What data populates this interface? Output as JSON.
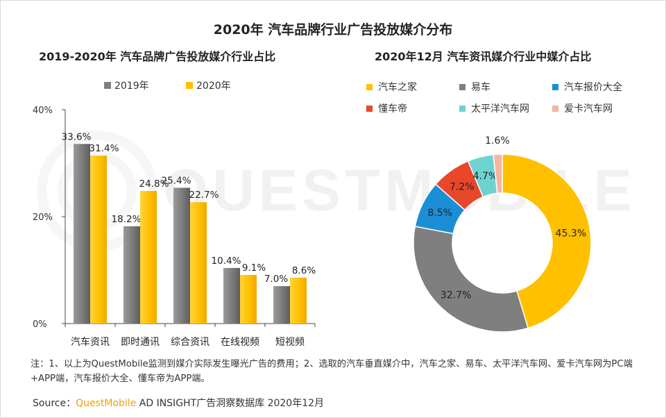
{
  "header": {
    "main_title": "2020年 汽车品牌行业广告投放媒介分布",
    "left_title": "2019-2020年 汽车品牌广告投放媒介行业占比",
    "right_title": "2020年12月 汽车资讯媒介行业中媒介占比"
  },
  "watermark": {
    "text": "QUESTMOBILE"
  },
  "chart_data": [
    {
      "type": "bar",
      "title": "2019-2020年 汽车品牌广告投放媒介行业占比",
      "categories": [
        "汽车资讯",
        "即时通讯",
        "综合资讯",
        "在线视频",
        "短视频"
      ],
      "series": [
        {
          "name": "2019年",
          "color": "#7f7f7f",
          "values": [
            33.6,
            18.2,
            25.4,
            10.4,
            7.0
          ],
          "labels": [
            "33.6%",
            "18.2%",
            "25.4%",
            "10.4%",
            "7.0%"
          ]
        },
        {
          "name": "2020年",
          "color": "#ffc000",
          "values": [
            31.4,
            24.8,
            22.7,
            9.1,
            8.6
          ],
          "labels": [
            "31.4%",
            "24.8%",
            "22.7%",
            "9.1%",
            "8.6%"
          ]
        }
      ],
      "ylim": [
        0,
        40
      ],
      "yticks": [
        0,
        20,
        40
      ],
      "ytick_labels": [
        "0%",
        "20%",
        "40%"
      ],
      "legend_position": "top"
    },
    {
      "type": "pie",
      "variant": "donut",
      "title": "2020年12月 汽车资讯媒介行业中媒介占比",
      "slices": [
        {
          "name": "汽车之家",
          "value": 45.3,
          "label": "45.3%",
          "color": "#ffc000"
        },
        {
          "name": "易车",
          "value": 32.7,
          "label": "32.7%",
          "color": "#7f7f7f"
        },
        {
          "name": "汽车报价大全",
          "value": 8.5,
          "label": "8.5%",
          "color": "#1a8fd6"
        },
        {
          "name": "懂车帝",
          "value": 7.2,
          "label": "7.2%",
          "color": "#e8472a"
        },
        {
          "name": "太平洋汽车网",
          "value": 4.7,
          "label": "4.7%",
          "color": "#6dd3d1"
        },
        {
          "name": "爱卡汽车网",
          "value": 1.6,
          "label": "1.6%",
          "color": "#f7b5a0"
        }
      ],
      "legend_position": "top"
    }
  ],
  "footer": {
    "note": "注：1、以上为QuestMobile监测到媒介实际发生曝光广告的费用；2、选取的汽车垂直媒介中，汽车之家、易车、太平洋汽车网、爱卡汽车网为PC端+APP端，汽车报价大全、懂车帝为APP端。",
    "source_prefix": "Source：",
    "source_brand": "QuestMobile",
    "source_rest": " AD INSIGHT广告洞察数据库 2020年12月"
  }
}
